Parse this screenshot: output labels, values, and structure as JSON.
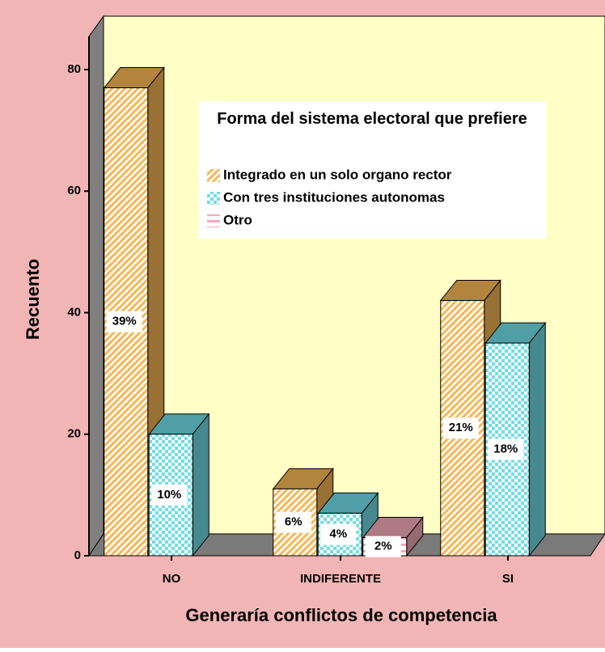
{
  "chart_data": {
    "type": "bar3d",
    "x_label": "Generaría conflictos de competencia",
    "y_label": "Recuento",
    "legend_title": "Forma del sistema electoral que prefiere",
    "categories": [
      "NO",
      "INDIFERENTE",
      "SI"
    ],
    "series": [
      {
        "name": "Integrado en un solo organo rector",
        "color": "#f7b756",
        "pattern": "diagonal",
        "values": [
          77,
          11,
          42
        ],
        "percent_labels": [
          "39%",
          "6%",
          "21%"
        ]
      },
      {
        "name": "Con tres instituciones autonomas",
        "color": "#6fdde6",
        "pattern": "checker",
        "values": [
          20,
          7,
          35
        ],
        "percent_labels": [
          "10%",
          "4%",
          "18%"
        ]
      },
      {
        "name": "Otro",
        "color": "#f5a9b8",
        "pattern": "horizontal",
        "values": [
          null,
          3,
          null
        ],
        "percent_labels": [
          null,
          "2%",
          null
        ]
      }
    ],
    "ylim": [
      0,
      80
    ],
    "yticks": [
      0,
      20,
      40,
      60,
      80
    ]
  }
}
